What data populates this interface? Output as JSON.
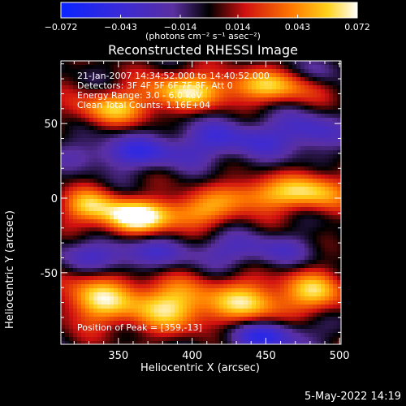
{
  "chart_data": {
    "type": "heatmap",
    "title": "Reconstructed RHESSI Image",
    "xlabel": "Heliocentric X (arcsec)",
    "ylabel": "Heliocentric Y (arcsec)",
    "xlim": [
      311,
      501
    ],
    "ylim": [
      -98,
      92
    ],
    "x_ticks": [
      350,
      400,
      450,
      500
    ],
    "y_ticks": [
      50,
      0,
      -50
    ],
    "colorbar": {
      "min": -0.072,
      "max": 0.072,
      "tick_labels": [
        "−0.072",
        "−0.043",
        "−0.014",
        "0.014",
        "0.043",
        "0.072"
      ],
      "tick_values": [
        -0.072,
        -0.043,
        -0.014,
        0.014,
        0.043,
        0.072
      ],
      "units_text": "(photons cm⁻² s⁻¹ asec⁻²)"
    },
    "annotations": [
      "21-Jan-2007 14:34:52.000 to 14:40:52.000",
      "Detectors: 3F 4F 5F 6F 7F 8F, Att 0",
      "Energy Range: 3.0 - 6.0 keV",
      "Clean     Total Counts: 1.16E+04",
      "Position of Peak = [359,-13]"
    ],
    "peak": {
      "x": 359,
      "y": -13,
      "value": 0.072
    },
    "sources": [
      {
        "x": 359,
        "y": -13,
        "sx": 16,
        "sy": 8,
        "amp": 0.072
      },
      {
        "x": 330,
        "y": -5,
        "sx": 14,
        "sy": 8,
        "amp": 0.05
      },
      {
        "x": 398,
        "y": -10,
        "sx": 20,
        "sy": 8,
        "amp": 0.045
      },
      {
        "x": 445,
        "y": 2,
        "sx": 22,
        "sy": 8,
        "amp": 0.048
      },
      {
        "x": 485,
        "y": 5,
        "sx": 16,
        "sy": 9,
        "amp": 0.05
      },
      {
        "x": 345,
        "y": 60,
        "sx": 20,
        "sy": 8,
        "amp": 0.048
      },
      {
        "x": 395,
        "y": 72,
        "sx": 22,
        "sy": 9,
        "amp": 0.055
      },
      {
        "x": 455,
        "y": 75,
        "sx": 25,
        "sy": 8,
        "amp": 0.05
      },
      {
        "x": 335,
        "y": -68,
        "sx": 18,
        "sy": 12,
        "amp": 0.055
      },
      {
        "x": 385,
        "y": -72,
        "sx": 22,
        "sy": 12,
        "amp": 0.06
      },
      {
        "x": 440,
        "y": -70,
        "sx": 20,
        "sy": 11,
        "amp": 0.055
      },
      {
        "x": 485,
        "y": -62,
        "sx": 15,
        "sy": 10,
        "amp": 0.05
      },
      {
        "x": 360,
        "y": 30,
        "sx": 30,
        "sy": 8,
        "amp": -0.038
      },
      {
        "x": 430,
        "y": 40,
        "sx": 30,
        "sy": 10,
        "amp": -0.035
      },
      {
        "x": 480,
        "y": 45,
        "sx": 15,
        "sy": 10,
        "amp": -0.03
      },
      {
        "x": 350,
        "y": -38,
        "sx": 30,
        "sy": 8,
        "amp": -0.036
      },
      {
        "x": 440,
        "y": -35,
        "sx": 30,
        "sy": 8,
        "amp": -0.03
      },
      {
        "x": 450,
        "y": -92,
        "sx": 20,
        "sy": 8,
        "amp": -0.05
      },
      {
        "x": 490,
        "y": 85,
        "sx": 12,
        "sy": 8,
        "amp": -0.025
      }
    ]
  },
  "footer": {
    "date": "5-May-2022 14:19"
  }
}
